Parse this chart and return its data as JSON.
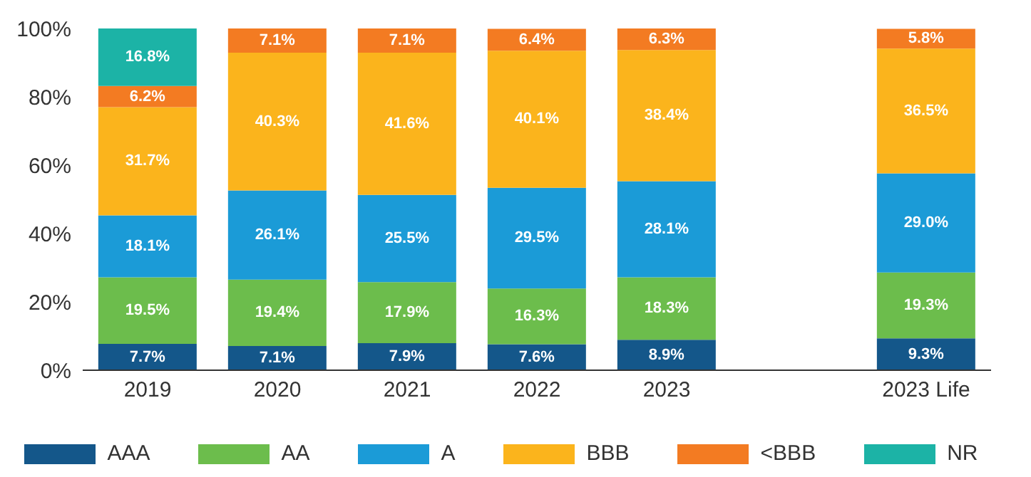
{
  "chart_data": {
    "type": "bar",
    "stacked": true,
    "categories": [
      "2019",
      "2020",
      "2021",
      "2022",
      "2023",
      null,
      "2023 Life"
    ],
    "series": [
      {
        "name": "AAA",
        "color": "#14578a",
        "values": [
          7.7,
          7.1,
          7.9,
          7.6,
          8.9,
          null,
          9.3
        ],
        "value_labels": [
          "7.7%",
          "7.1%",
          "7.9%",
          "7.6%",
          "8.9%",
          null,
          "9.3%"
        ]
      },
      {
        "name": "AA",
        "color": "#6cbd4c",
        "values": [
          19.5,
          19.4,
          17.9,
          16.3,
          18.3,
          null,
          19.3
        ],
        "value_labels": [
          "19.5%",
          "19.4%",
          "17.9%",
          "16.3%",
          "18.3%",
          null,
          "19.3%"
        ]
      },
      {
        "name": "A",
        "color": "#1b9bd7",
        "values": [
          18.1,
          26.1,
          25.5,
          29.5,
          28.1,
          null,
          29.0
        ],
        "value_labels": [
          "18.1%",
          "26.1%",
          "25.5%",
          "29.5%",
          "28.1%",
          null,
          "29.0%"
        ]
      },
      {
        "name": "BBB",
        "color": "#fbb41c",
        "values": [
          31.7,
          40.3,
          41.6,
          40.1,
          38.4,
          null,
          36.5
        ],
        "value_labels": [
          "31.7%",
          "40.3%",
          "41.6%",
          "40.1%",
          "38.4%",
          null,
          "36.5%"
        ]
      },
      {
        "name": "<BBB",
        "color": "#f37b22",
        "values": [
          6.2,
          7.1,
          7.1,
          6.4,
          6.3,
          null,
          5.8
        ],
        "value_labels": [
          "6.2%",
          "7.1%",
          "7.1%",
          "6.4%",
          "6.3%",
          null,
          "5.8%"
        ]
      },
      {
        "name": "NR",
        "color": "#1cb3a6",
        "values": [
          16.8,
          null,
          null,
          null,
          null,
          null,
          null
        ],
        "value_labels": [
          "16.8%",
          null,
          null,
          null,
          null,
          null,
          null
        ]
      }
    ],
    "ylim": [
      0,
      100
    ],
    "yticks": [
      {
        "value": 0,
        "label": "0%"
      },
      {
        "value": 20,
        "label": "20%"
      },
      {
        "value": 40,
        "label": "40%"
      },
      {
        "value": 60,
        "label": "60%"
      },
      {
        "value": 80,
        "label": "80%"
      },
      {
        "value": 100,
        "label": "100%"
      }
    ],
    "grid": false,
    "legend": "bottom"
  }
}
